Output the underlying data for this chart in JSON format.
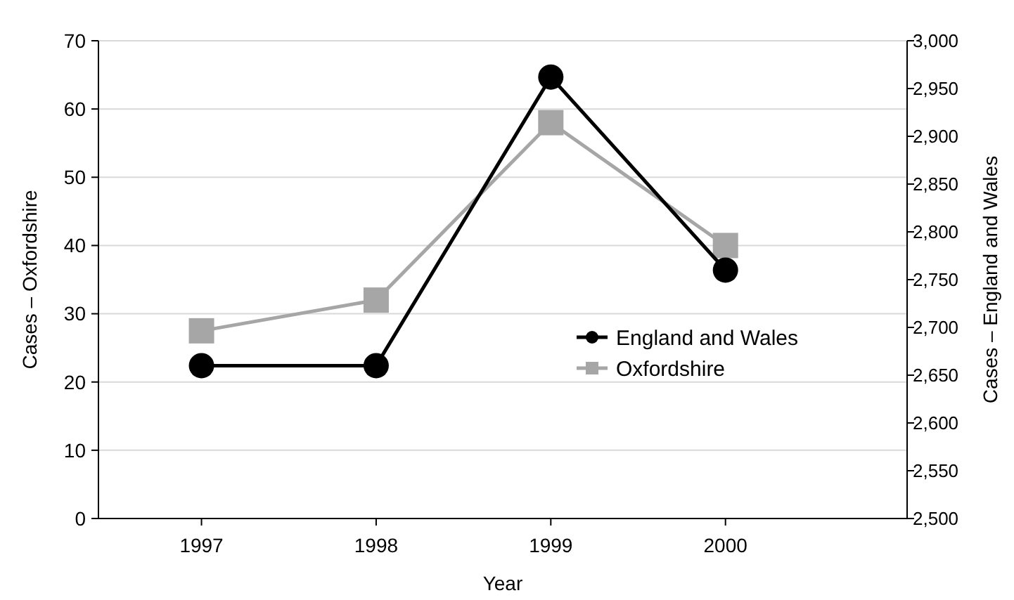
{
  "chart_data": {
    "type": "line",
    "xlabel": "Year",
    "ylabel": "Cases – Oxfordshire",
    "y2label": "Cases – England and Wales",
    "x": [
      1997,
      1998,
      1999,
      2000
    ],
    "xlim": [
      1996.41,
      2001.04
    ],
    "xticks": [
      1997,
      1998,
      1999,
      2000
    ],
    "ylim": [
      0,
      70
    ],
    "yticks": [
      0,
      10,
      20,
      30,
      40,
      50,
      60,
      70
    ],
    "y2lim": [
      2500,
      3000
    ],
    "y2ticks": [
      {
        "value": 2500,
        "label": "2,500"
      },
      {
        "value": 2550,
        "label": "2,550"
      },
      {
        "value": 2600,
        "label": "2,600"
      },
      {
        "value": 2650,
        "label": "2,650"
      },
      {
        "value": 2700,
        "label": "2,700"
      },
      {
        "value": 2750,
        "label": "2,750"
      },
      {
        "value": 2800,
        "label": "2,800"
      },
      {
        "value": 2850,
        "label": "2,850"
      },
      {
        "value": 2900,
        "label": "2,900"
      },
      {
        "value": 2950,
        "label": "2,950"
      },
      {
        "value": 3000,
        "label": "3,000"
      }
    ],
    "grid": "y",
    "legend": "right",
    "line_style": "solid",
    "series": [
      {
        "name": "England and Wales",
        "color": "#000000",
        "axis": "y2",
        "marker": "circle",
        "values": [
          2660,
          2660,
          2962,
          2760
        ]
      },
      {
        "name": "Oxfordshire",
        "color": "#a6a6a6",
        "axis": "y",
        "marker": "square",
        "values": [
          27.5,
          32,
          58,
          40
        ]
      }
    ]
  }
}
